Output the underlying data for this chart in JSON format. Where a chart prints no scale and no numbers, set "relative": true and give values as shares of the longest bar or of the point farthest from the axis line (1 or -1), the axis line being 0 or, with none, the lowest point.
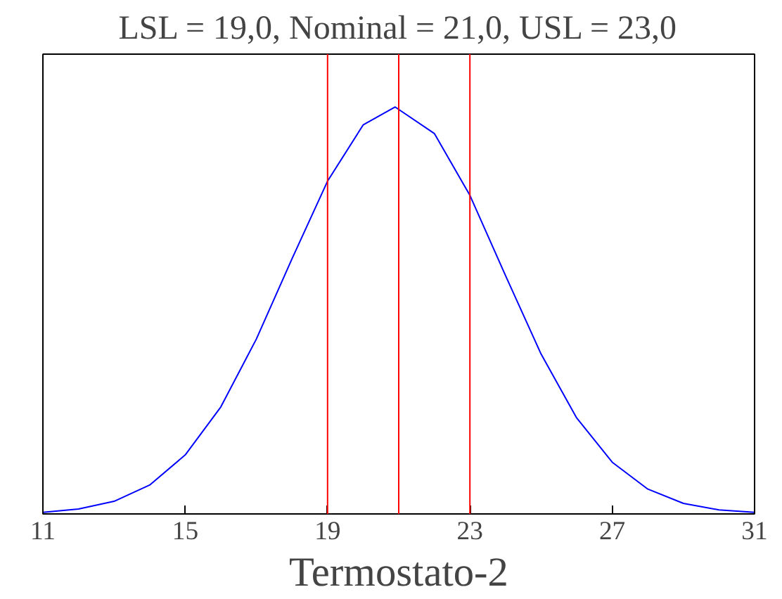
{
  "chart_data": {
    "type": "line",
    "title": "LSL = 19,0, Nominal = 21,0, USL = 23,0",
    "xlabel": "Termostato-2",
    "relative": true,
    "xlim": [
      11,
      31
    ],
    "xticks": [
      11,
      15,
      19,
      23,
      27,
      31
    ],
    "grid": false,
    "marker": "none",
    "line_style": "solid",
    "series": [
      {
        "color": "#0000ff",
        "x": [
          11,
          12,
          13,
          14,
          15,
          16,
          17,
          18,
          19,
          20,
          20.9,
          22,
          23,
          24,
          25,
          26,
          27,
          28,
          29,
          30,
          31
        ],
        "values": [
          0.004,
          0.012,
          0.031,
          0.071,
          0.145,
          0.263,
          0.43,
          0.627,
          0.818,
          0.956,
          1.0,
          0.935,
          0.783,
          0.586,
          0.393,
          0.236,
          0.127,
          0.061,
          0.026,
          0.01,
          0.004
        ]
      }
    ],
    "ref_lines": [
      {
        "axis": "x",
        "value": 19,
        "color": "#ff0000"
      },
      {
        "axis": "x",
        "value": 21,
        "color": "#ff0000"
      },
      {
        "axis": "x",
        "value": 23,
        "color": "#ff0000"
      }
    ]
  }
}
